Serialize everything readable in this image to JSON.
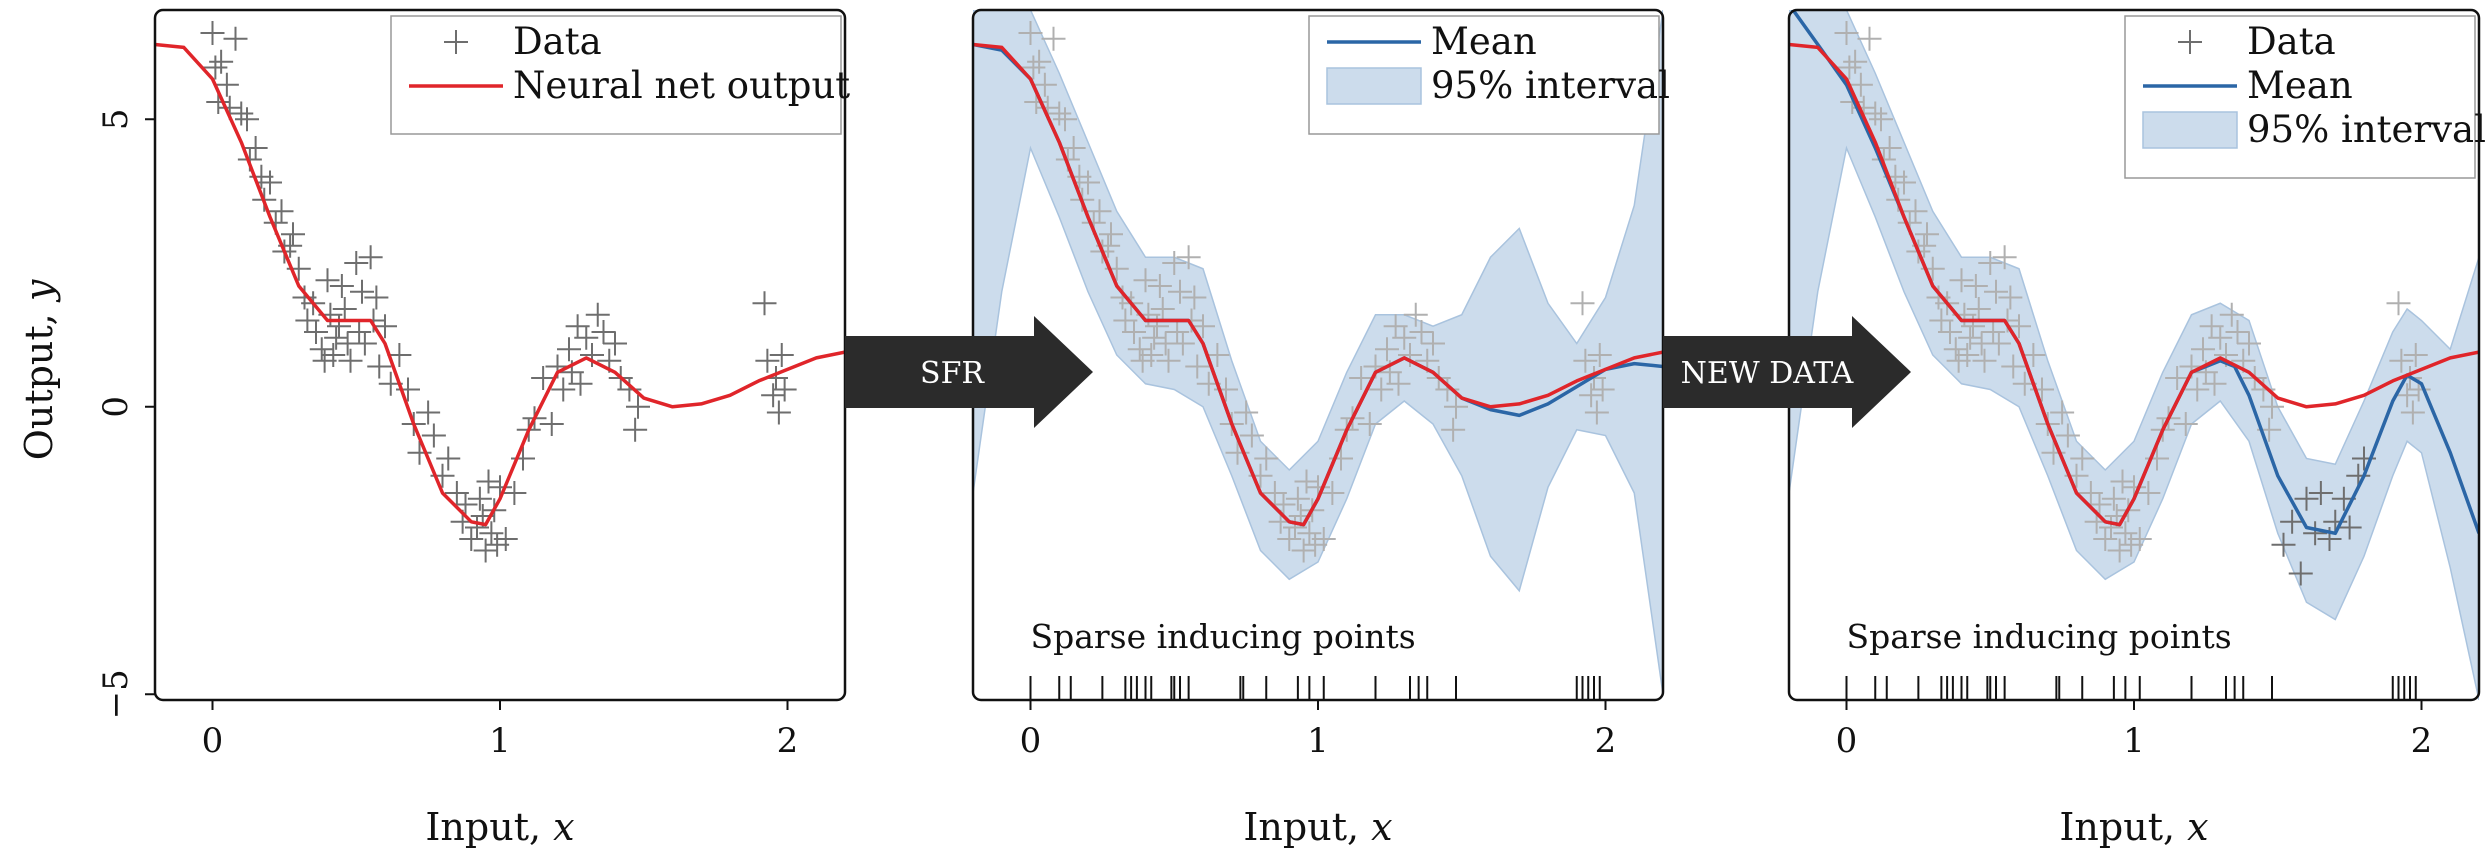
{
  "figure": {
    "arrows": [
      {
        "label": "SFR"
      },
      {
        "label": "NEW DATA"
      }
    ]
  },
  "colors": {
    "data": "#6e6e6e",
    "data_light": "#b0b0b0",
    "nn_output": "#e0252a",
    "mean": "#2b66a6",
    "interval": "#ccdcec",
    "interval_edge": "#a9c3de",
    "arrow": "#2b2b2b"
  },
  "chart_data": [
    {
      "type": "scatter",
      "xlabel": "Input, x",
      "ylabel": "Output, y",
      "xlim": [
        -0.2,
        2.2
      ],
      "ylim": [
        -5.1,
        6.9
      ],
      "xticks": [
        0,
        1,
        2
      ],
      "yticks": [
        -5,
        0,
        5
      ],
      "legend": {
        "placement": "top-right",
        "entries": [
          "Data",
          "Neural net output"
        ]
      },
      "series": [
        {
          "name": "Data",
          "kind": "points",
          "ref": "shared_data"
        },
        {
          "name": "Neural net output",
          "kind": "line",
          "x": [
            -0.2,
            -0.1,
            0.0,
            0.1,
            0.2,
            0.3,
            0.4,
            0.5,
            0.55,
            0.6,
            0.7,
            0.8,
            0.9,
            0.95,
            1.0,
            1.1,
            1.2,
            1.3,
            1.4,
            1.5,
            1.6,
            1.7,
            1.8,
            1.9,
            2.0,
            2.1,
            2.2
          ],
          "y": [
            6.3,
            6.25,
            5.7,
            4.6,
            3.3,
            2.1,
            1.5,
            1.5,
            1.5,
            1.1,
            -0.3,
            -1.5,
            -2.0,
            -2.05,
            -1.6,
            -0.4,
            0.6,
            0.85,
            0.6,
            0.15,
            0.0,
            0.05,
            0.2,
            0.45,
            0.65,
            0.85,
            0.95
          ]
        }
      ],
      "shared_data": {
        "x": [
          0.0,
          0.01,
          0.02,
          0.03,
          0.05,
          0.06,
          0.08,
          0.1,
          0.12,
          0.13,
          0.15,
          0.17,
          0.18,
          0.2,
          0.22,
          0.24,
          0.25,
          0.27,
          0.28,
          0.3,
          0.32,
          0.33,
          0.35,
          0.36,
          0.38,
          0.39,
          0.4,
          0.41,
          0.42,
          0.43,
          0.44,
          0.45,
          0.46,
          0.47,
          0.48,
          0.5,
          0.51,
          0.52,
          0.53,
          0.55,
          0.56,
          0.57,
          0.58,
          0.6,
          0.62,
          0.65,
          0.68,
          0.7,
          0.72,
          0.75,
          0.77,
          0.8,
          0.82,
          0.85,
          0.87,
          0.88,
          0.9,
          0.92,
          0.93,
          0.94,
          0.95,
          0.96,
          0.97,
          0.98,
          0.99,
          1.0,
          1.02,
          1.05,
          1.08,
          1.1,
          1.12,
          1.15,
          1.18,
          1.2,
          1.22,
          1.24,
          1.25,
          1.27,
          1.28,
          1.3,
          1.32,
          1.34,
          1.36,
          1.38,
          1.4,
          1.42,
          1.45,
          1.47,
          1.48,
          1.92,
          1.93,
          1.95,
          1.96,
          1.97,
          1.98,
          1.99
        ],
        "y": [
          6.5,
          5.9,
          5.3,
          6.0,
          5.6,
          5.2,
          6.4,
          5.1,
          5.0,
          4.3,
          4.5,
          4.0,
          3.6,
          3.9,
          3.2,
          3.4,
          2.7,
          2.8,
          3.0,
          2.4,
          1.9,
          1.5,
          1.8,
          1.3,
          1.0,
          0.8,
          2.2,
          1.6,
          0.9,
          1.2,
          1.4,
          2.1,
          1.7,
          1.1,
          0.8,
          2.5,
          1.3,
          2.0,
          1.1,
          2.6,
          1.5,
          1.9,
          0.7,
          1.4,
          0.4,
          0.9,
          0.3,
          -0.3,
          -0.8,
          -0.1,
          -0.5,
          -1.2,
          -0.9,
          -1.5,
          -2.0,
          -1.7,
          -2.3,
          -2.1,
          -1.6,
          -1.9,
          -2.5,
          -1.3,
          -2.2,
          -1.8,
          -2.4,
          -1.4,
          -2.3,
          -1.5,
          -0.9,
          -0.4,
          -0.2,
          0.5,
          -0.3,
          0.7,
          0.3,
          1.0,
          0.6,
          1.4,
          0.4,
          1.2,
          0.9,
          1.6,
          1.3,
          0.8,
          1.1,
          0.5,
          0.3,
          -0.4,
          0.0,
          1.8,
          0.8,
          0.2,
          0.5,
          -0.1,
          0.9,
          0.3
        ]
      }
    },
    {
      "type": "line",
      "xlabel": "Input, x",
      "ylabel": "",
      "xlim": [
        -0.2,
        2.2
      ],
      "ylim": [
        -5.1,
        6.9
      ],
      "xticks": [
        0,
        1,
        2
      ],
      "legend": {
        "placement": "top-right",
        "entries": [
          "Mean",
          "95% interval"
        ]
      },
      "annotation": "Sparse inducing points",
      "inducing_points": [
        0.0,
        0.1,
        0.14,
        0.25,
        0.33,
        0.35,
        0.37,
        0.4,
        0.42,
        0.49,
        0.5,
        0.52,
        0.55,
        0.73,
        0.74,
        0.82,
        0.93,
        0.97,
        1.02,
        1.2,
        1.32,
        1.35,
        1.38,
        1.48,
        1.9,
        1.92,
        1.94,
        1.96,
        1.98
      ],
      "series": [
        {
          "name": "Data",
          "kind": "points",
          "ref": "shared_data"
        },
        {
          "name": "Neural net output",
          "kind": "line",
          "ref": 0
        },
        {
          "name": "Mean",
          "kind": "line",
          "x": [
            -0.2,
            -0.1,
            0.0,
            0.1,
            0.2,
            0.3,
            0.4,
            0.5,
            0.55,
            0.6,
            0.7,
            0.8,
            0.9,
            0.95,
            1.0,
            1.1,
            1.2,
            1.3,
            1.4,
            1.5,
            1.6,
            1.7,
            1.8,
            1.9,
            2.0,
            2.1,
            2.2
          ],
          "y": [
            6.3,
            6.2,
            5.7,
            4.6,
            3.3,
            2.1,
            1.5,
            1.5,
            1.5,
            1.1,
            -0.3,
            -1.5,
            -2.0,
            -2.05,
            -1.6,
            -0.4,
            0.6,
            0.85,
            0.6,
            0.15,
            -0.05,
            -0.15,
            0.05,
            0.35,
            0.65,
            0.75,
            0.7
          ]
        },
        {
          "name": "95% interval",
          "kind": "band",
          "x": [
            -0.2,
            -0.1,
            0.0,
            0.1,
            0.2,
            0.3,
            0.4,
            0.5,
            0.6,
            0.7,
            0.8,
            0.9,
            1.0,
            1.1,
            1.2,
            1.3,
            1.4,
            1.5,
            1.6,
            1.7,
            1.8,
            1.9,
            2.0,
            2.1,
            2.2
          ],
          "lower": [
            -1.5,
            2.0,
            4.5,
            3.3,
            2.0,
            0.9,
            0.4,
            0.3,
            0.0,
            -1.2,
            -2.5,
            -3.0,
            -2.7,
            -1.6,
            -0.3,
            0.1,
            -0.3,
            -1.2,
            -2.6,
            -3.2,
            -1.4,
            -0.4,
            -0.5,
            -1.5,
            -5.0
          ],
          "upper": [
            6.9,
            6.9,
            6.9,
            5.8,
            4.6,
            3.4,
            2.6,
            2.6,
            2.4,
            0.8,
            -0.6,
            -1.1,
            -0.6,
            0.6,
            1.6,
            1.6,
            1.4,
            1.6,
            2.6,
            3.1,
            1.8,
            1.1,
            1.9,
            3.5,
            6.9
          ]
        }
      ]
    },
    {
      "type": "line",
      "xlabel": "Input, x",
      "ylabel": "",
      "xlim": [
        -0.2,
        2.2
      ],
      "ylim": [
        -5.1,
        6.9
      ],
      "xticks": [
        0,
        1,
        2
      ],
      "legend": {
        "placement": "top-right",
        "entries": [
          "Data",
          "Mean",
          "95% interval"
        ]
      },
      "annotation": "Sparse inducing points",
      "inducing_points": [
        0.0,
        0.1,
        0.14,
        0.25,
        0.33,
        0.35,
        0.37,
        0.4,
        0.42,
        0.49,
        0.5,
        0.52,
        0.55,
        0.73,
        0.74,
        0.82,
        0.93,
        0.97,
        1.02,
        1.2,
        1.32,
        1.35,
        1.38,
        1.48,
        1.9,
        1.92,
        1.94,
        1.96,
        1.98
      ],
      "series": [
        {
          "name": "Data",
          "kind": "points",
          "ref": "shared_data"
        },
        {
          "name": "New data",
          "kind": "points",
          "x": [
            1.52,
            1.55,
            1.58,
            1.6,
            1.63,
            1.65,
            1.68,
            1.7,
            1.73,
            1.75,
            1.78,
            1.8
          ],
          "y": [
            -2.4,
            -2.0,
            -2.9,
            -1.6,
            -2.2,
            -1.5,
            -2.3,
            -2.0,
            -1.6,
            -2.1,
            -1.2,
            -0.9
          ]
        },
        {
          "name": "Neural net output",
          "kind": "line",
          "ref": 0
        },
        {
          "name": "Mean",
          "kind": "line",
          "x": [
            -0.2,
            -0.1,
            0.0,
            0.1,
            0.2,
            0.3,
            0.4,
            0.5,
            0.55,
            0.6,
            0.7,
            0.8,
            0.9,
            0.95,
            1.0,
            1.1,
            1.2,
            1.3,
            1.35,
            1.4,
            1.5,
            1.6,
            1.7,
            1.8,
            1.9,
            1.95,
            2.0,
            2.1,
            2.2
          ],
          "y": [
            7.0,
            6.3,
            5.6,
            4.5,
            3.3,
            2.1,
            1.5,
            1.5,
            1.5,
            1.1,
            -0.3,
            -1.5,
            -2.0,
            -2.05,
            -1.6,
            -0.4,
            0.6,
            0.8,
            0.7,
            0.2,
            -1.2,
            -2.1,
            -2.2,
            -1.2,
            0.1,
            0.55,
            0.4,
            -0.8,
            -2.2
          ]
        },
        {
          "name": "95% interval",
          "kind": "band",
          "x": [
            -0.2,
            -0.1,
            0.0,
            0.1,
            0.2,
            0.3,
            0.4,
            0.5,
            0.6,
            0.7,
            0.8,
            0.9,
            1.0,
            1.1,
            1.2,
            1.3,
            1.4,
            1.5,
            1.6,
            1.7,
            1.8,
            1.9,
            1.95,
            2.0,
            2.1,
            2.2
          ],
          "lower": [
            -1.5,
            2.0,
            4.5,
            3.3,
            2.0,
            0.9,
            0.4,
            0.3,
            0.0,
            -1.2,
            -2.5,
            -3.0,
            -2.7,
            -1.6,
            -0.3,
            0.1,
            -0.6,
            -2.2,
            -3.4,
            -3.7,
            -2.6,
            -1.2,
            -0.6,
            -0.8,
            -2.8,
            -5.1
          ],
          "upper": [
            6.9,
            6.9,
            6.9,
            5.8,
            4.6,
            3.4,
            2.6,
            2.6,
            2.4,
            0.8,
            -0.6,
            -1.1,
            -0.6,
            0.6,
            1.6,
            1.8,
            1.5,
            0.0,
            -0.9,
            -1.0,
            0.1,
            1.3,
            1.7,
            1.5,
            1.0,
            2.6
          ]
        }
      ]
    }
  ]
}
